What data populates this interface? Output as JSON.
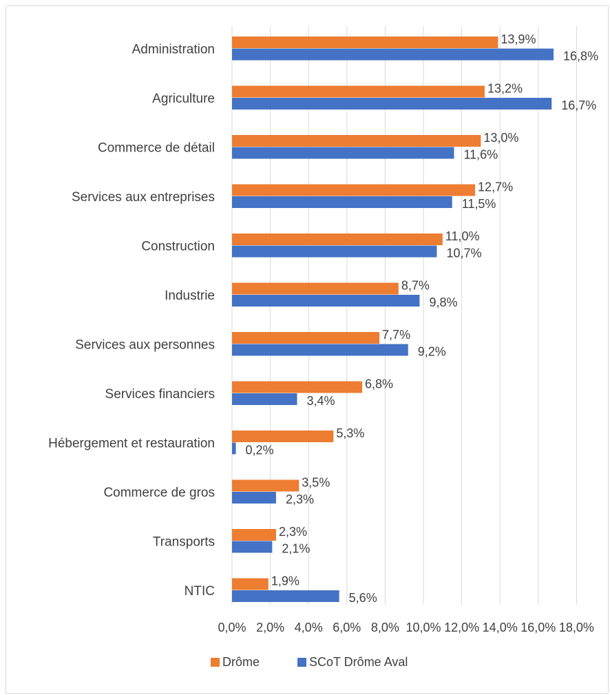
{
  "chart_data": {
    "type": "bar",
    "orientation": "horizontal",
    "categories": [
      "Administration",
      "Agriculture",
      "Commerce de détail",
      "Services aux entreprises",
      "Construction",
      "Industrie",
      "Services aux personnes",
      "Services financiers",
      "Hébergement et restauration",
      "Commerce de gros",
      "Transports",
      "NTIC"
    ],
    "series": [
      {
        "name": "Drôme",
        "color": "#ED7D31",
        "values": [
          13.9,
          13.2,
          13.0,
          12.7,
          11.0,
          8.7,
          7.7,
          6.8,
          5.3,
          3.5,
          2.3,
          1.9
        ],
        "labels": [
          "13,9%",
          "13,2%",
          "13,0%",
          "12,7%",
          "11,0%",
          "8,7%",
          "7,7%",
          "6,8%",
          "5,3%",
          "3,5%",
          "2,3%",
          "1,9%"
        ]
      },
      {
        "name": "SCoT Drôme Aval",
        "color": "#4472C4",
        "values": [
          16.8,
          16.7,
          11.6,
          11.5,
          10.7,
          9.8,
          9.2,
          3.4,
          0.2,
          2.3,
          2.1,
          5.6
        ],
        "labels": [
          "16,8%",
          "16,7%",
          "11,6%",
          "11,5%",
          "10,7%",
          "9,8%",
          "9,2%",
          "3,4%",
          "0,2%",
          "2,3%",
          "2,1%",
          "5,6%"
        ]
      }
    ],
    "xlim": [
      0,
      18
    ],
    "xticks": [
      "0,0%",
      "2,0%",
      "4,0%",
      "6,0%",
      "8,0%",
      "10,0%",
      "12,0%",
      "14,0%",
      "16,0%",
      "18,0%"
    ],
    "title": "",
    "xlabel": "",
    "ylabel": "",
    "grid": "vertical",
    "legend": "bottom"
  }
}
